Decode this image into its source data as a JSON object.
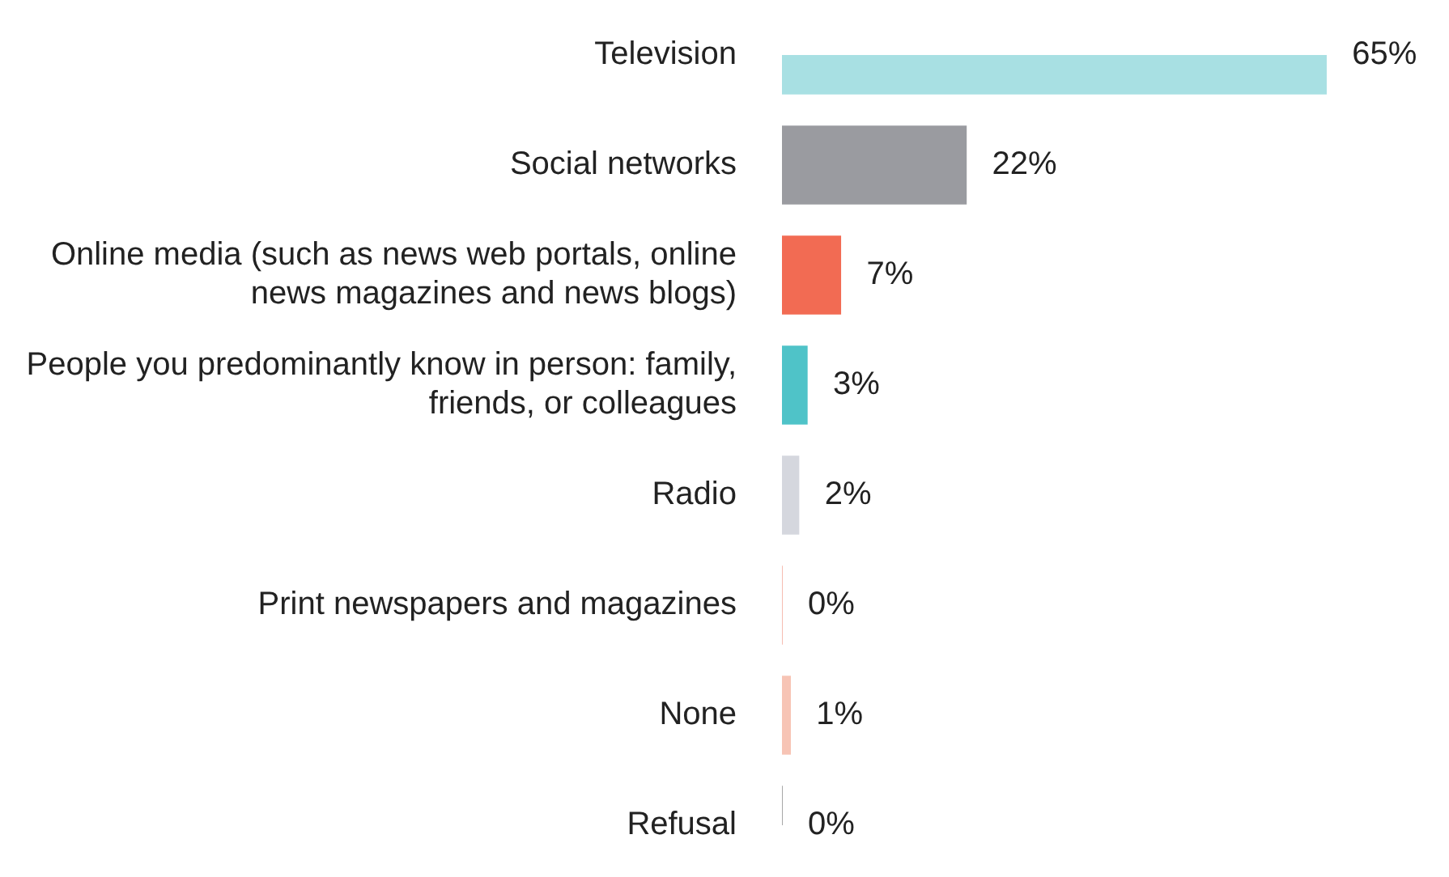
{
  "chart_data": {
    "type": "bar",
    "orientation": "horizontal",
    "data_labels": true,
    "legend": false,
    "categories": [
      "Television",
      "Social networks",
      "Online media (such as news web portals, online news magazines and news blogs)",
      "People you predominantly know in person: family, friends, or colleagues",
      "Radio",
      "Print newspapers and magazines",
      "None",
      "Refusal"
    ],
    "values": [
      65,
      22,
      7,
      3,
      2,
      0,
      1,
      0
    ],
    "value_labels": [
      "65%",
      "22%",
      "7%",
      "3%",
      "2%",
      "0%",
      "1%",
      "0%"
    ],
    "colors": [
      "#a8e0e3",
      "#9a9ba0",
      "#f26b53",
      "#4fc3c8",
      "#d5d7de",
      "#f29a8a",
      "#f7c4b5",
      "#7a7a7a"
    ]
  }
}
